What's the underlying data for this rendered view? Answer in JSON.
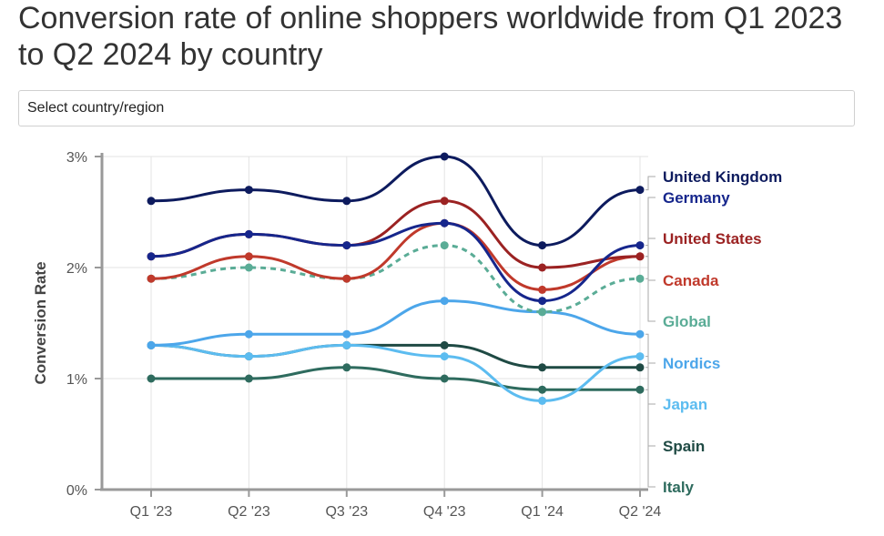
{
  "title": "Conversion rate of online shoppers worldwide from Q1 2023 to Q2 2024 by country",
  "selector": {
    "label": "Select country/region"
  },
  "chart_data": {
    "type": "line",
    "ylabel": "Conversion Rate",
    "ylim": [
      0,
      3
    ],
    "yticks": [
      0,
      1,
      2,
      3
    ],
    "yticklabels": [
      "0%",
      "1%",
      "2%",
      "3%"
    ],
    "categories": [
      "Q1 '23",
      "Q2 '23",
      "Q3 '23",
      "Q4 '23",
      "Q1 '24",
      "Q2 '24"
    ],
    "grid": true,
    "legend_position": "right (labels at line ends)",
    "series": [
      {
        "name": "United Kingdom",
        "color": "#0d1b5e",
        "values": [
          2.6,
          2.7,
          2.6,
          3.0,
          2.2,
          2.7
        ]
      },
      {
        "name": "Germany",
        "color": "#16268c",
        "values": [
          2.1,
          2.3,
          2.2,
          2.4,
          1.7,
          2.2
        ]
      },
      {
        "name": "United States",
        "color": "#9b2222",
        "values": [
          2.1,
          2.3,
          2.2,
          2.6,
          2.0,
          2.1
        ]
      },
      {
        "name": "Canada",
        "color": "#c0392b",
        "values": [
          1.9,
          2.1,
          1.9,
          2.4,
          1.8,
          2.1
        ]
      },
      {
        "name": "Global",
        "color": "#5aac96",
        "dashed": true,
        "values": [
          1.9,
          2.0,
          1.9,
          2.2,
          1.6,
          1.9
        ]
      },
      {
        "name": "Nordics",
        "color": "#4ca6ea",
        "values": [
          1.3,
          1.4,
          1.4,
          1.7,
          1.6,
          1.4
        ]
      },
      {
        "name": "Japan",
        "color": "#5cbcf0",
        "values": [
          1.3,
          1.2,
          1.3,
          1.2,
          0.8,
          1.2
        ]
      },
      {
        "name": "Spain",
        "color": "#1f4a44",
        "values": [
          1.3,
          1.2,
          1.3,
          1.3,
          1.1,
          1.1
        ]
      },
      {
        "name": "Italy",
        "color": "#2e6b5e",
        "values": [
          1.0,
          1.0,
          1.1,
          1.0,
          0.9,
          0.9
        ]
      }
    ]
  }
}
